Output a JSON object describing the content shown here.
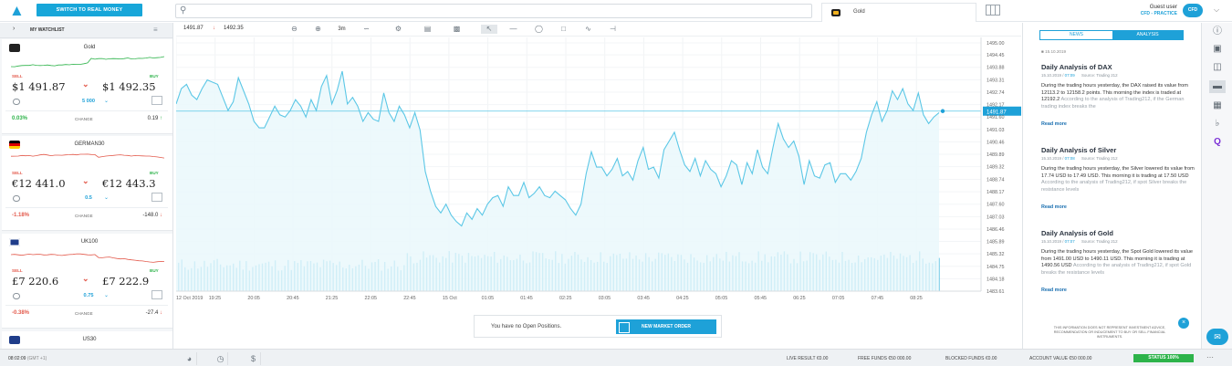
{
  "topbar": {
    "switch_label": "SWITCH TO REAL MONEY",
    "symbol_tab": "Gold",
    "user_name": "Guest user",
    "account_type": "CFD - PRACTICE",
    "avatar_text": "CFD"
  },
  "watchlist": {
    "title": "MY WATCHLIST",
    "sell_label": "SELL",
    "buy_label": "BUY",
    "change_label": "CHANGE",
    "items": [
      {
        "name": "Gold",
        "sell": "$1 491.87",
        "buy": "$1 492.35",
        "qty": "5 000",
        "change_pct": "0.03%",
        "change_val": "0.19",
        "dir": "up",
        "flag": "gold"
      },
      {
        "name": "GERMAN30",
        "sell": "€12 441.0",
        "buy": "€12 443.3",
        "qty": "0.5",
        "change_pct": "-1.18%",
        "change_val": "-148.0",
        "dir": "down",
        "flag": "de"
      },
      {
        "name": "UK100",
        "sell": "£7 220.6",
        "buy": "£7 222.9",
        "qty": "0.75",
        "change_pct": "-0.38%",
        "change_val": "-27.4",
        "dir": "down",
        "flag": "uk"
      },
      {
        "name": "US30"
      }
    ]
  },
  "toolbar": {
    "bid": "1491.87",
    "ask": "1492.35",
    "timeframe": "3m"
  },
  "chart_data": {
    "type": "line",
    "instrument": "Gold",
    "current_price": "1491.87",
    "y_ticks": [
      "1495.00",
      "1494.45",
      "1493.88",
      "1493.31",
      "1492.74",
      "1492.17",
      "1491.60",
      "1491.03",
      "1490.46",
      "1489.89",
      "1489.32",
      "1488.74",
      "1488.17",
      "1487.60",
      "1487.03",
      "1486.46",
      "1485.89",
      "1485.32",
      "1484.75",
      "1484.18",
      "1483.61"
    ],
    "x_ticks": [
      "12 Oct 2019",
      "19:25",
      "20:05",
      "20:45",
      "21:25",
      "22:05",
      "22:45",
      "15 Oct",
      "01:05",
      "01:45",
      "02:25",
      "03:05",
      "03:45",
      "04:25",
      "05:05",
      "05:45",
      "06:25",
      "07:05",
      "07:45",
      "08:25"
    ],
    "ylim": [
      1483.61,
      1495.0
    ],
    "values": [
      1492.2,
      1492.9,
      1493.1,
      1492.6,
      1492.4,
      1492.9,
      1493.3,
      1493.2,
      1493.1,
      1492.5,
      1491.9,
      1492.3,
      1493.4,
      1492.8,
      1492.2,
      1491.4,
      1491.1,
      1491.1,
      1491.6,
      1492.1,
      1491.7,
      1491.6,
      1491.9,
      1492.4,
      1492.1,
      1491.6,
      1492.4,
      1491.9,
      1493.0,
      1493.5,
      1492.2,
      1492.8,
      1493.7,
      1492.2,
      1492.5,
      1492.1,
      1491.4,
      1491.8,
      1491.5,
      1491.4,
      1492.7,
      1491.8,
      1491.4,
      1492.1,
      1491.7,
      1491.1,
      1491.8,
      1491.0,
      1489.1,
      1488.2,
      1487.5,
      1487.2,
      1487.6,
      1487.1,
      1486.8,
      1486.6,
      1487.2,
      1486.9,
      1487.4,
      1487.1,
      1487.6,
      1487.9,
      1488.0,
      1487.5,
      1488.4,
      1488.0,
      1488.0,
      1488.6,
      1487.9,
      1488.1,
      1488.4,
      1488.0,
      1487.9,
      1488.2,
      1488.0,
      1487.8,
      1487.4,
      1487.1,
      1487.6,
      1489.0,
      1490.0,
      1489.3,
      1489.3,
      1488.9,
      1489.2,
      1489.7,
      1488.9,
      1489.1,
      1488.7,
      1489.6,
      1490.2,
      1489.2,
      1489.3,
      1488.8,
      1490.1,
      1490.5,
      1490.9,
      1490.1,
      1489.4,
      1489.1,
      1489.7,
      1488.9,
      1489.6,
      1489.2,
      1489.0,
      1488.4,
      1488.9,
      1489.6,
      1489.4,
      1488.5,
      1489.5,
      1489.0,
      1490.1,
      1489.3,
      1489.0,
      1490.2,
      1491.3,
      1490.6,
      1490.2,
      1490.5,
      1489.8,
      1488.5,
      1489.6,
      1488.9,
      1488.8,
      1489.4,
      1489.5,
      1488.6,
      1489.0,
      1489.0,
      1488.7,
      1489.1,
      1489.7,
      1490.9,
      1491.7,
      1492.3,
      1491.4,
      1491.9,
      1492.8,
      1492.4,
      1492.9,
      1492.2,
      1491.9,
      1492.7,
      1491.7,
      1491.3,
      1491.6,
      1491.8
    ]
  },
  "positions": {
    "empty_text": "You have no Open Positions.",
    "new_order_label": "NEW MARKET ORDER"
  },
  "news": {
    "tab_news": "NEWS",
    "tab_analysis": "ANALYSIS",
    "top_date": "15.10.2019",
    "articles": [
      {
        "title": "Daily Analysis of DAX",
        "date": "15.10.2019",
        "time": "07:09",
        "source": "Source: Trading 212",
        "body": "During the trading hours yesterday, the DAX raised its value from 12113.2 to 12158.2 points. This morning the index is traded at 12192.2",
        "fade": "According to the analysis of Trading212, if the German trading index breaks the",
        "read_more": "Read more"
      },
      {
        "title": "Daily Analysis of Silver",
        "date": "15.10.2019",
        "time": "07:08",
        "source": "Source: Trading 212",
        "body": "During the trading hours yesterday, the Silver lowered its value from 17.74 USD to 17.49 USD. This morning it is trading at 17.50 USD",
        "fade": "According to the analysis of Trading212, if spot Silver breaks the resistance levels",
        "read_more": "Read more"
      },
      {
        "title": "Daily Analysis of Gold",
        "date": "15.10.2019",
        "time": "07:07",
        "source": "Source: Trading 212",
        "body": "During the trading hours yesterday, the Spot Gold lowered its value from 1491.00 USD to 1490.11 USD. This morning it is trading at 1490.56 USD",
        "fade": "According to the analysis of Trading212, if spot Gold breaks the resistance levels",
        "read_more": "Read more"
      }
    ],
    "disclaimer": "THIS INFORMATION DOES NOT REPRESENT INVESTMENT ADVICE, RECOMMENDATION OR INDUCEMENT TO BUY OR SELL FINANCIAL INSTRUMENTS."
  },
  "statusbar": {
    "time": "08:02:09",
    "gmt": "(GMT +1)",
    "live_result": "LIVE RESULT €0.00",
    "free_funds": "FREE FUNDS €50 000.00",
    "blocked_funds": "BLOCKED FUNDS €0.00",
    "account_value": "ACCOUNT VALUE €50 000.00",
    "status": "STATUS 100%"
  },
  "colors": {
    "accent": "#1ea1d8",
    "line": "#5bc7e6",
    "area": "#eaf8fc",
    "volume": "#3fb6de",
    "up": "#2db34a",
    "down": "#e35a4c"
  }
}
